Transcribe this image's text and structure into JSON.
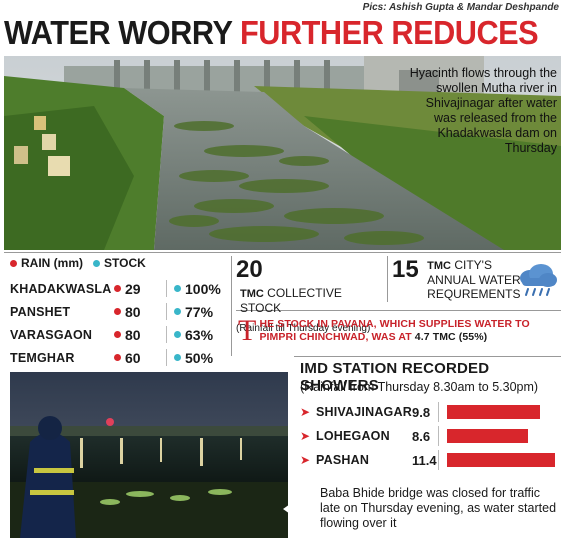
{
  "credit": "Pics: Ashish Gupta & Mandar Deshpande",
  "headline": {
    "part1": "WATER WORRY",
    "part2": "FURTHER REDUCES"
  },
  "photo_caption": "Hyacinth flows through the swollen Mutha river in Shivajinagar after water was released from the Khadakwasla dam on Thursday",
  "legend": {
    "rain": "RAIN (mm)",
    "stock": "STOCK"
  },
  "colors": {
    "accent": "#d8262c",
    "stock": "#39b6c9"
  },
  "dams": [
    {
      "name": "KHADAKWASLA",
      "rain": "29",
      "stock": "100%"
    },
    {
      "name": "PANSHET",
      "rain": "80",
      "stock": "77%"
    },
    {
      "name": "VARASGAON",
      "rain": "80",
      "stock": "63%"
    },
    {
      "name": "TEMGHAR",
      "rain": "60",
      "stock": "50%"
    }
  ],
  "collective": {
    "value": "20",
    "unit": "TMC",
    "label": "COLLECTIVE STOCK",
    "note": "(Rainfall till Thursday evening)"
  },
  "requirement": {
    "value": "15",
    "unit": "TMC",
    "label": "CITY'S ANNUAL WATER REQUREMENTS",
    "icon": "rain-cloud-icon"
  },
  "pavana": {
    "drop": "T",
    "text": "HE STOCK IN PAVANA, WHICH SUPPLIES WATER TO PIMPRI CHINCHWAD, WAS AT",
    "value": "4.7 TMC (55%)"
  },
  "imd": {
    "title": "IMD STATION RECORDED SHOWERS",
    "subtitle": "(Rainfall from Thursday 8.30am to 5.30pm)",
    "stations": [
      {
        "name": "SHIVAJINAGAR",
        "value": "9.8",
        "amount": 9.8
      },
      {
        "name": "LOHEGAON",
        "value": "8.6",
        "amount": 8.6
      },
      {
        "name": "PASHAN",
        "value": "11.4",
        "amount": 11.4
      }
    ],
    "max": 11.4
  },
  "bridge_caption": "Baba Bhide bridge was closed for traffic late on Thursday evening, as water started flowing over it"
}
